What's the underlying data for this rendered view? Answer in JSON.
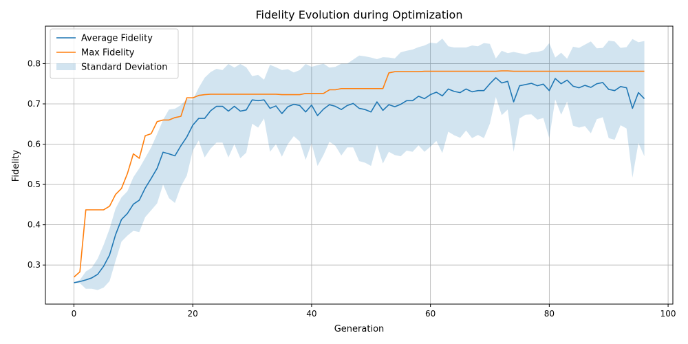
{
  "chart_data": {
    "type": "line",
    "title": "Fidelity Evolution during Optimization",
    "xlabel": "Generation",
    "ylabel": "Fidelity",
    "xlim": [
      -4.8,
      100.8
    ],
    "ylim": [
      0.203,
      0.893
    ],
    "xticks": [
      0,
      20,
      40,
      60,
      80,
      100
    ],
    "yticks": [
      0.3,
      0.4,
      0.5,
      0.6,
      0.7,
      0.8
    ],
    "ytick_labels": [
      "0.3",
      "0.4",
      "0.5",
      "0.6",
      "0.7",
      "0.8"
    ],
    "grid": true,
    "legend_position": "upper-left",
    "colors": {
      "average": "#1f77b4",
      "max": "#ff7f0e",
      "band": "#1f77b4"
    },
    "legend": [
      {
        "label": "Average Fidelity",
        "kind": "line",
        "color": "#1f77b4"
      },
      {
        "label": "Max Fidelity",
        "kind": "line",
        "color": "#ff7f0e"
      },
      {
        "label": "Standard Deviation",
        "kind": "patch",
        "color": "#1f77b4"
      }
    ],
    "x": [
      0,
      1,
      2,
      3,
      4,
      5,
      6,
      7,
      8,
      9,
      10,
      11,
      12,
      13,
      14,
      15,
      16,
      17,
      18,
      19,
      20,
      21,
      22,
      23,
      24,
      25,
      26,
      27,
      28,
      29,
      30,
      31,
      32,
      33,
      34,
      35,
      36,
      37,
      38,
      39,
      40,
      41,
      42,
      43,
      44,
      45,
      46,
      47,
      48,
      49,
      50,
      51,
      52,
      53,
      54,
      55,
      56,
      57,
      58,
      59,
      60,
      61,
      62,
      63,
      64,
      65,
      66,
      67,
      68,
      69,
      70,
      71,
      72,
      73,
      74,
      75,
      76,
      77,
      78,
      79,
      80,
      81,
      82,
      83,
      84,
      85,
      86,
      87,
      88,
      89,
      90,
      91,
      92,
      93,
      94,
      95,
      96
    ],
    "series": [
      {
        "name": "Average Fidelity",
        "values": [
          0.256,
          0.259,
          0.263,
          0.268,
          0.277,
          0.297,
          0.325,
          0.375,
          0.413,
          0.428,
          0.451,
          0.461,
          0.491,
          0.515,
          0.54,
          0.58,
          0.576,
          0.571,
          0.596,
          0.618,
          0.647,
          0.664,
          0.664,
          0.683,
          0.694,
          0.694,
          0.682,
          0.694,
          0.682,
          0.685,
          0.71,
          0.708,
          0.71,
          0.689,
          0.695,
          0.676,
          0.693,
          0.699,
          0.696,
          0.68,
          0.697,
          0.671,
          0.687,
          0.698,
          0.694,
          0.686,
          0.696,
          0.701,
          0.689,
          0.686,
          0.68,
          0.705,
          0.684,
          0.698,
          0.693,
          0.699,
          0.708,
          0.708,
          0.719,
          0.713,
          0.723,
          0.729,
          0.72,
          0.737,
          0.731,
          0.728,
          0.737,
          0.73,
          0.733,
          0.733,
          0.75,
          0.765,
          0.752,
          0.756,
          0.705,
          0.745,
          0.748,
          0.751,
          0.745,
          0.749,
          0.733,
          0.763,
          0.75,
          0.759,
          0.744,
          0.74,
          0.746,
          0.741,
          0.75,
          0.753,
          0.736,
          0.733,
          0.743,
          0.74,
          0.689,
          0.728,
          0.713
        ]
      },
      {
        "name": "Max Fidelity",
        "values": [
          0.27,
          0.283,
          0.437,
          0.437,
          0.437,
          0.437,
          0.446,
          0.475,
          0.49,
          0.527,
          0.576,
          0.565,
          0.621,
          0.626,
          0.656,
          0.66,
          0.66,
          0.666,
          0.669,
          0.715,
          0.715,
          0.721,
          0.723,
          0.724,
          0.724,
          0.724,
          0.724,
          0.724,
          0.724,
          0.724,
          0.724,
          0.724,
          0.724,
          0.724,
          0.724,
          0.723,
          0.723,
          0.723,
          0.723,
          0.726,
          0.726,
          0.726,
          0.726,
          0.735,
          0.735,
          0.738,
          0.738,
          0.738,
          0.738,
          0.738,
          0.738,
          0.738,
          0.738,
          0.777,
          0.78,
          0.78,
          0.78,
          0.78,
          0.78,
          0.781,
          0.781,
          0.781,
          0.781,
          0.781,
          0.781,
          0.781,
          0.781,
          0.781,
          0.781,
          0.781,
          0.781,
          0.781,
          0.782,
          0.782,
          0.781,
          0.781,
          0.781,
          0.781,
          0.781,
          0.781,
          0.781,
          0.781,
          0.781,
          0.781,
          0.781,
          0.781,
          0.781,
          0.781,
          0.781,
          0.781,
          0.781,
          0.781,
          0.781,
          0.781,
          0.781,
          0.781,
          0.781
        ]
      },
      {
        "name": "Standard Deviation",
        "band_upper": [
          0.256,
          0.263,
          0.284,
          0.293,
          0.316,
          0.35,
          0.39,
          0.44,
          0.468,
          0.483,
          0.518,
          0.54,
          0.566,
          0.592,
          0.625,
          0.66,
          0.686,
          0.688,
          0.697,
          0.712,
          0.71,
          0.74,
          0.765,
          0.779,
          0.787,
          0.784,
          0.799,
          0.79,
          0.799,
          0.791,
          0.769,
          0.772,
          0.76,
          0.797,
          0.791,
          0.784,
          0.786,
          0.778,
          0.784,
          0.799,
          0.792,
          0.796,
          0.8,
          0.79,
          0.792,
          0.8,
          0.8,
          0.81,
          0.82,
          0.818,
          0.815,
          0.811,
          0.816,
          0.815,
          0.813,
          0.828,
          0.832,
          0.835,
          0.841,
          0.845,
          0.852,
          0.85,
          0.862,
          0.843,
          0.84,
          0.84,
          0.84,
          0.845,
          0.843,
          0.851,
          0.849,
          0.813,
          0.832,
          0.826,
          0.829,
          0.826,
          0.823,
          0.828,
          0.829,
          0.833,
          0.851,
          0.815,
          0.827,
          0.812,
          0.842,
          0.839,
          0.847,
          0.855,
          0.838,
          0.839,
          0.857,
          0.855,
          0.839,
          0.841,
          0.861,
          0.853,
          0.856
        ],
        "band_lower": [
          0.256,
          0.255,
          0.241,
          0.241,
          0.238,
          0.244,
          0.26,
          0.31,
          0.358,
          0.373,
          0.385,
          0.382,
          0.419,
          0.436,
          0.453,
          0.5,
          0.466,
          0.454,
          0.495,
          0.522,
          0.584,
          0.609,
          0.567,
          0.589,
          0.604,
          0.604,
          0.567,
          0.6,
          0.565,
          0.579,
          0.651,
          0.641,
          0.664,
          0.581,
          0.6,
          0.569,
          0.6,
          0.62,
          0.607,
          0.561,
          0.602,
          0.546,
          0.573,
          0.606,
          0.596,
          0.572,
          0.592,
          0.592,
          0.558,
          0.554,
          0.546,
          0.599,
          0.552,
          0.581,
          0.573,
          0.57,
          0.584,
          0.581,
          0.597,
          0.581,
          0.594,
          0.608,
          0.578,
          0.631,
          0.622,
          0.616,
          0.634,
          0.615,
          0.623,
          0.615,
          0.651,
          0.717,
          0.672,
          0.686,
          0.581,
          0.664,
          0.673,
          0.674,
          0.661,
          0.665,
          0.615,
          0.711,
          0.673,
          0.706,
          0.646,
          0.641,
          0.645,
          0.627,
          0.662,
          0.667,
          0.615,
          0.611,
          0.647,
          0.639,
          0.517,
          0.603,
          0.57
        ]
      }
    ]
  }
}
